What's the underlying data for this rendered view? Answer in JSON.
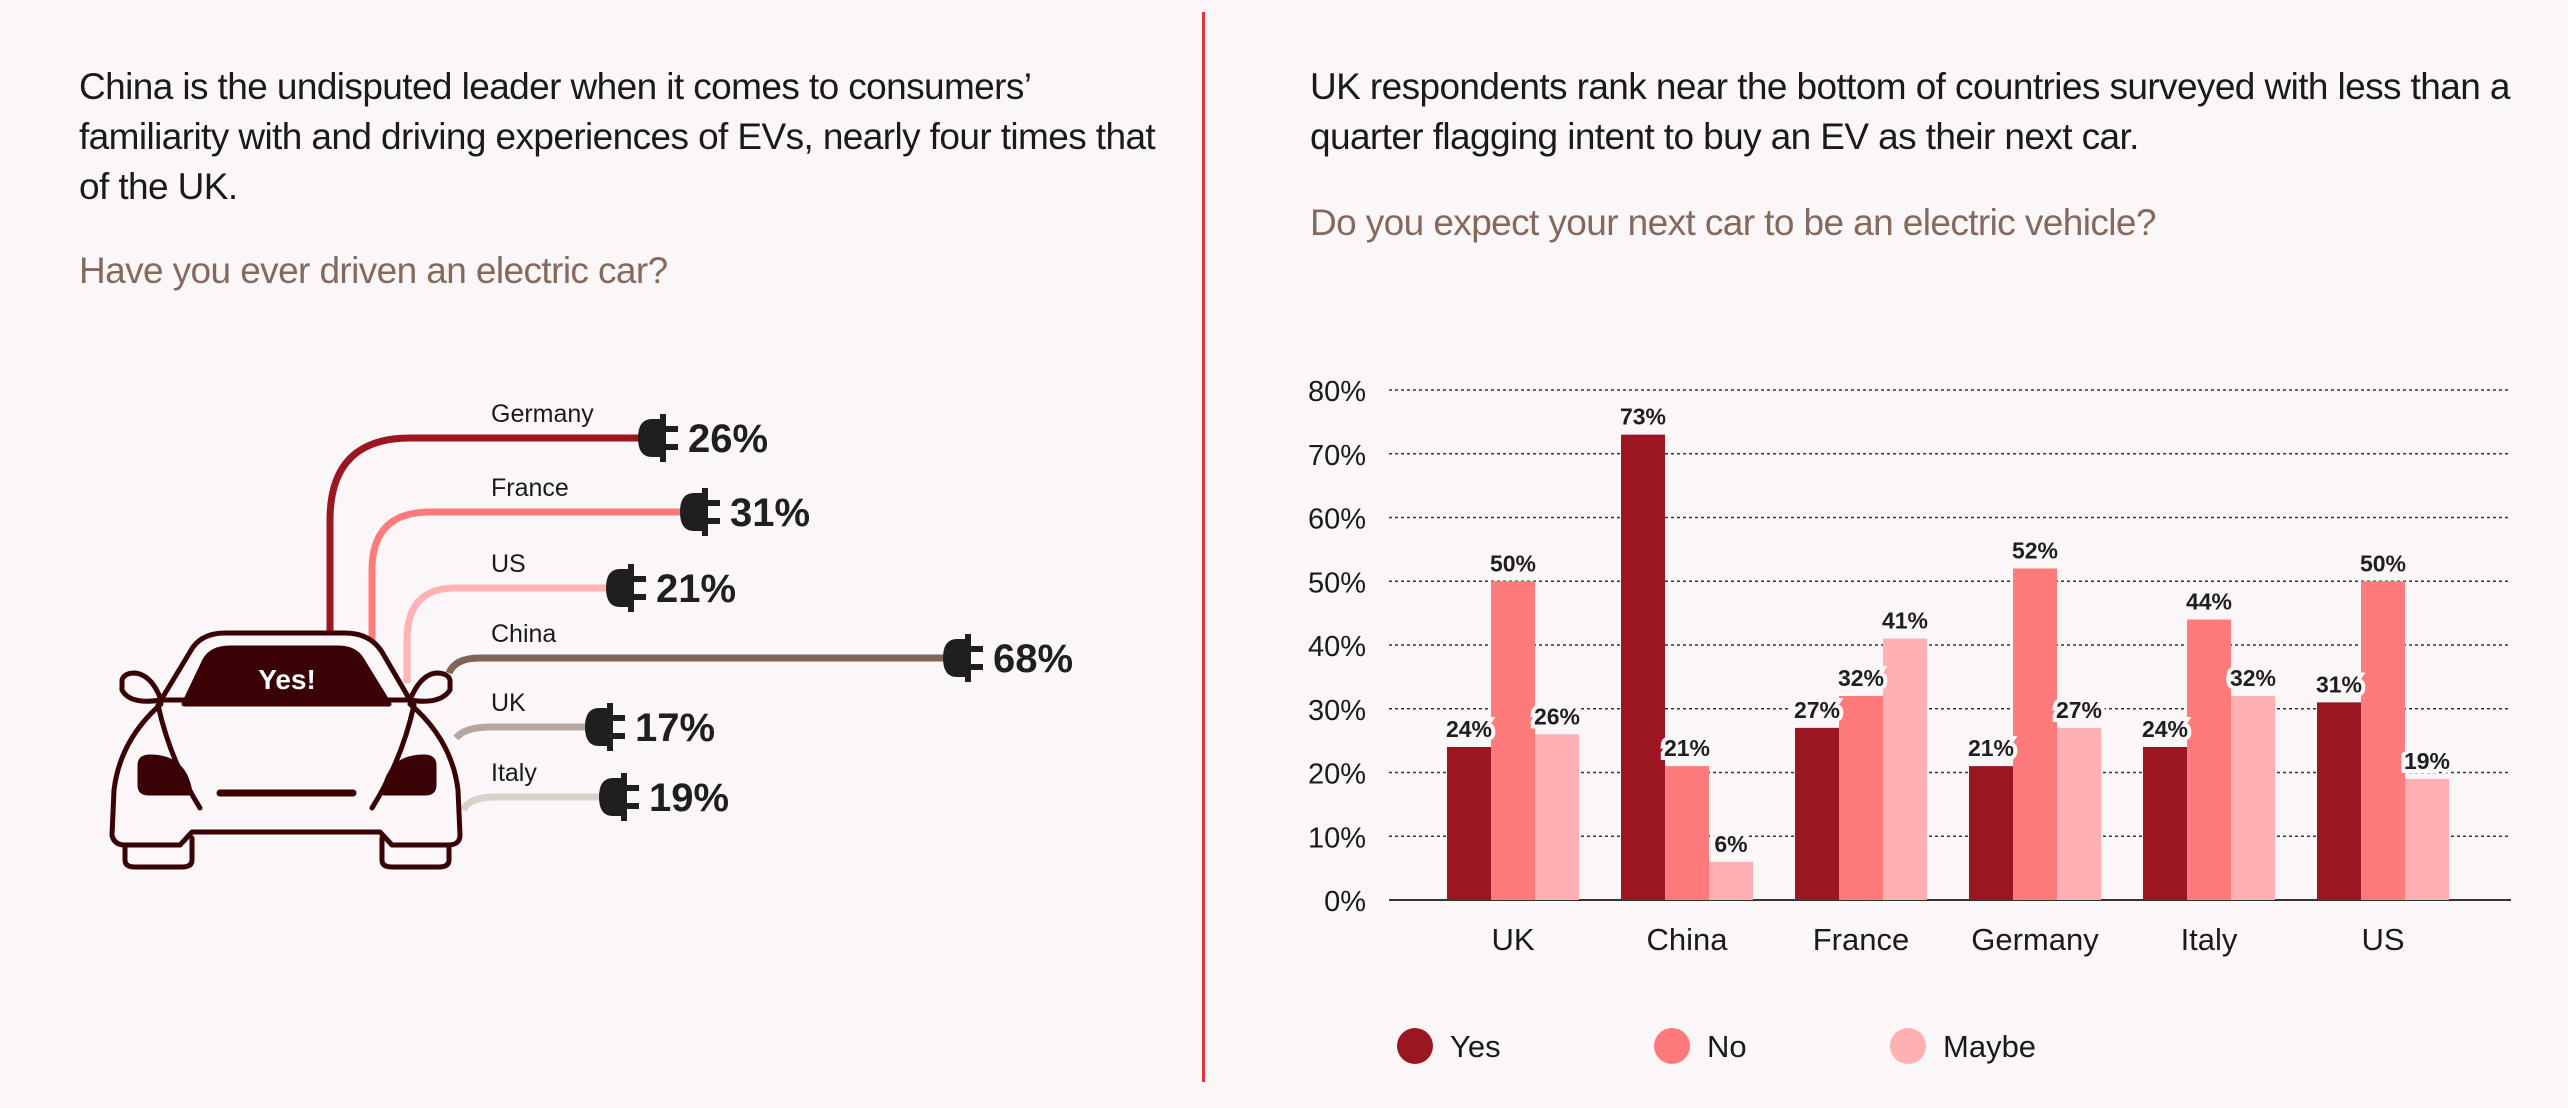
{
  "left": {
    "lead": "China is the undisputed leader when it comes to consumers’ familiarity with and driving experiences of EVs, nearly four times that of the UK.",
    "question": "Have you ever driven an electric car?",
    "car_label": "Yes!",
    "items": [
      {
        "country": "Germany",
        "value": "26%",
        "color": "#9b1620"
      },
      {
        "country": "France",
        "value": "31%",
        "color": "#ff7b7b"
      },
      {
        "country": "US",
        "value": "21%",
        "color": "#ffb3b5"
      },
      {
        "country": "China",
        "value": "68%",
        "color": "#7f6559"
      },
      {
        "country": "UK",
        "value": "17%",
        "color": "#b5a79f"
      },
      {
        "country": "Italy",
        "value": "19%",
        "color": "#d9d1cc"
      }
    ]
  },
  "right": {
    "lead": "UK respondents rank near the bottom of countries surveyed with less than a quarter flagging intent to buy an EV as their next car.",
    "question": "Do you expect your next car to be an electric vehicle?"
  },
  "chart_data": [
    {
      "type": "bar",
      "title": "Have you ever driven an electric car?",
      "categories": [
        "Germany",
        "France",
        "US",
        "China",
        "UK",
        "Italy"
      ],
      "values": [
        26,
        31,
        21,
        68,
        17,
        19
      ],
      "unit": "%"
    },
    {
      "type": "bar",
      "title": "Do you expect your next car to be an electric vehicle?",
      "categories": [
        "UK",
        "China",
        "France",
        "Germany",
        "Italy",
        "US"
      ],
      "series": [
        {
          "name": "Yes",
          "color": "#9b1620",
          "values": [
            24,
            73,
            27,
            21,
            24,
            31
          ]
        },
        {
          "name": "No",
          "color": "#ff7b7b",
          "values": [
            50,
            21,
            32,
            52,
            44,
            50
          ]
        },
        {
          "name": "Maybe",
          "color": "#ffb0b3",
          "values": [
            26,
            6,
            41,
            27,
            32,
            19
          ]
        }
      ],
      "yticks": [
        "0%",
        "10%",
        "20%",
        "30%",
        "40%",
        "50%",
        "60%",
        "70%",
        "80%"
      ],
      "ylim": [
        0,
        80
      ],
      "grid": true,
      "legend": "bottom"
    }
  ]
}
